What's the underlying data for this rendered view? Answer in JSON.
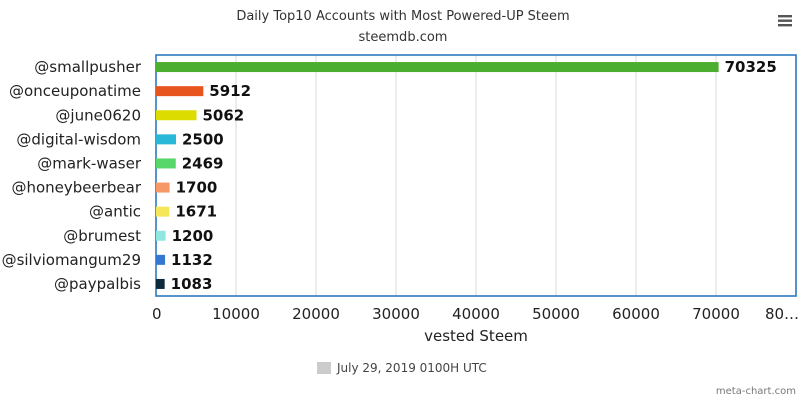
{
  "chart_data": {
    "type": "bar",
    "orientation": "horizontal",
    "title": "Daily Top10 Accounts with Most Powered-UP Steem",
    "subtitle": "steemdb.com",
    "categories": [
      "@smallpusher",
      "@onceuponatime",
      "@june0620",
      "@digital-wisdom",
      "@mark-waser",
      "@honeybeerbear",
      "@antic",
      "@brumest",
      "@silviomangum29",
      "@paypalbis"
    ],
    "series": [
      {
        "name": "July 29, 2019 0100H UTC",
        "values": [
          70325,
          5912,
          5062,
          2500,
          2469,
          1700,
          1671,
          1200,
          1132,
          1083
        ],
        "colors": [
          "#4cae2e",
          "#e8541e",
          "#dcdc00",
          "#2ab8d9",
          "#57d66a",
          "#f79966",
          "#f4e85a",
          "#8ee8e0",
          "#3478d4",
          "#0d2a3c"
        ]
      }
    ],
    "xlabel": "vested Steem",
    "ylabel": "",
    "xlim": [
      0,
      80000
    ],
    "ticks": [
      "0",
      "10000",
      "20000",
      "30000",
      "40000",
      "50000",
      "60000",
      "70000",
      "80…"
    ],
    "grid": true,
    "legend_position": "bottom",
    "legend_color": "#cccccc"
  },
  "credit": "meta-chart.com",
  "menu_icon": "hamburger-menu-icon"
}
